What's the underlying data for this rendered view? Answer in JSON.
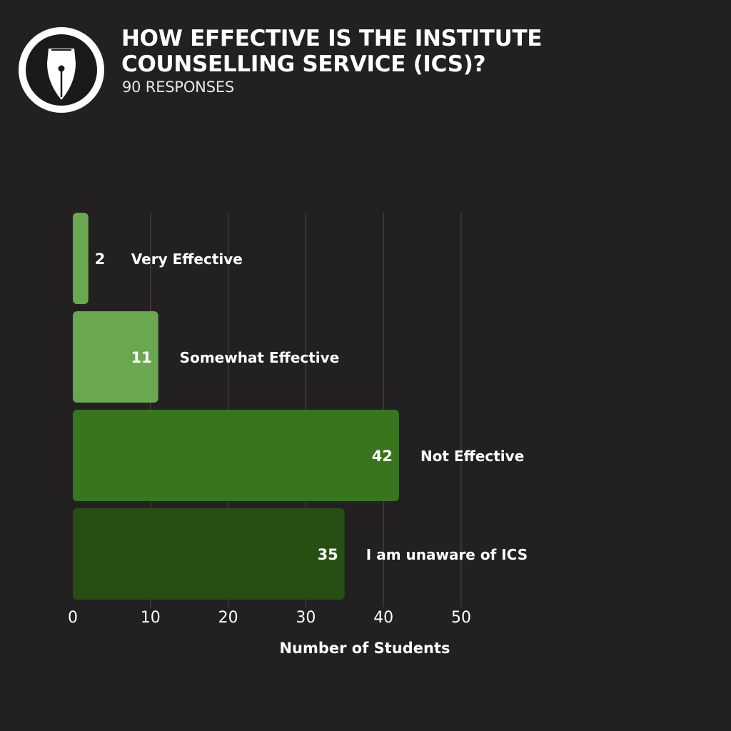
{
  "header": {
    "logo_icon": "fountain-pen-nib-icon",
    "title": "HOW EFFECTIVE IS THE INSTITUTE COUNSELLING SERVICE (ICS)?",
    "subtitle": "90 RESPONSES"
  },
  "chart_data": {
    "type": "bar",
    "orientation": "horizontal",
    "categories": [
      "Very Effective",
      "Somewhat Effective",
      "Not Effective",
      "I am unaware of ICS"
    ],
    "values": [
      2,
      11,
      42,
      35
    ],
    "colors": [
      "#6aa84f",
      "#6aa84f",
      "#38761d",
      "#274e13"
    ],
    "xlabel": "Number of Students",
    "ylabel": "",
    "xlim": [
      0,
      50
    ],
    "xticks": [
      0,
      10,
      20,
      30,
      40,
      50
    ],
    "grid": true,
    "legend": "none",
    "data_labels": true
  }
}
